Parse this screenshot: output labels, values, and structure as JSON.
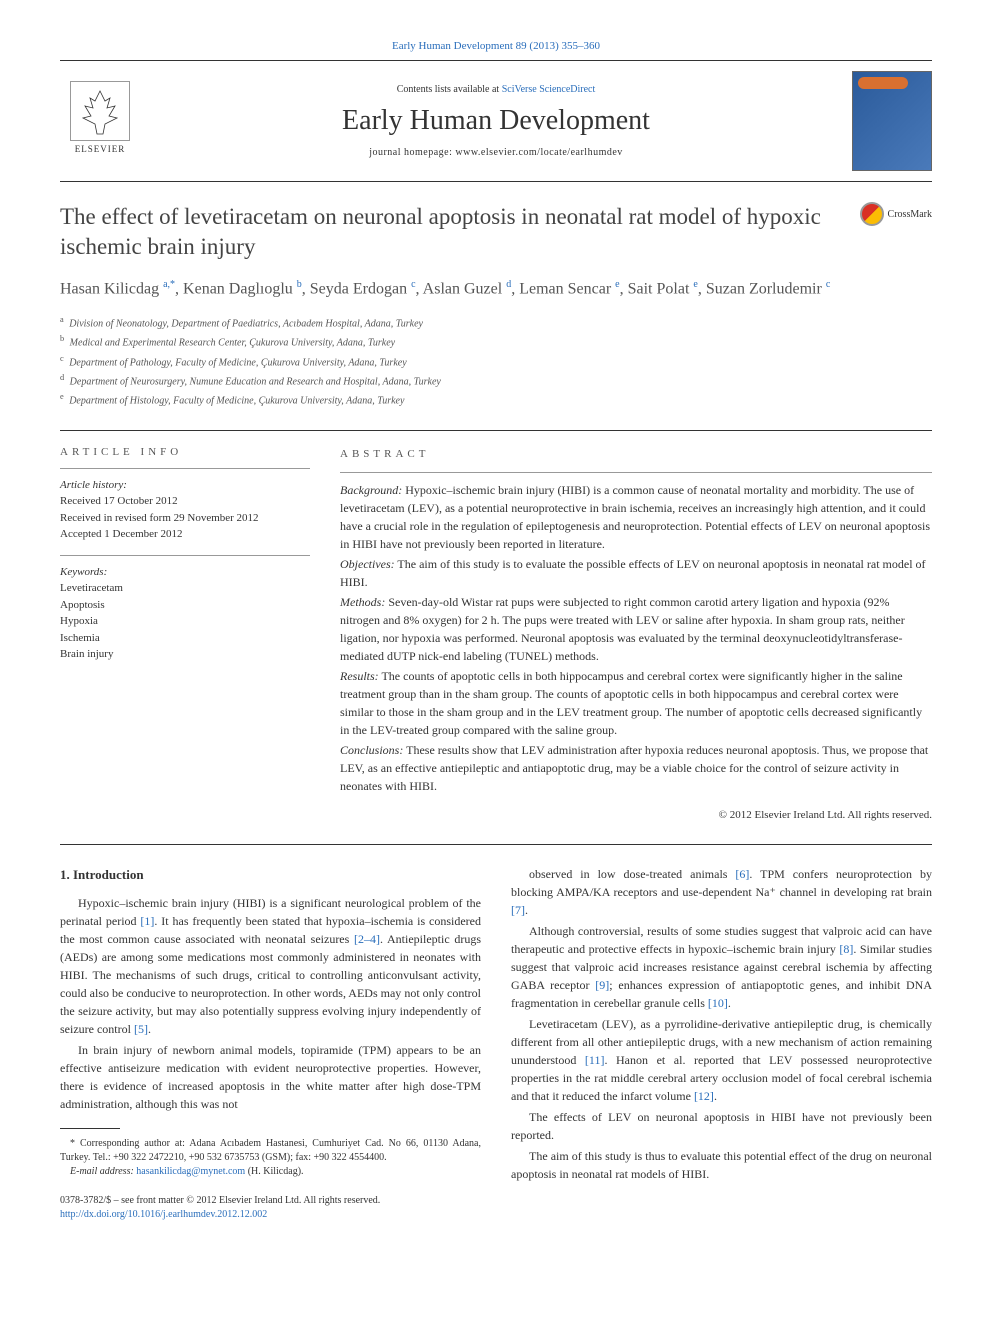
{
  "journal_ref": "Early Human Development 89 (2013) 355–360",
  "header": {
    "contents_prefix": "Contents lists available at ",
    "contents_link": "SciVerse ScienceDirect",
    "journal_name": "Early Human Development",
    "homepage": "journal homepage: www.elsevier.com/locate/earlhumdev",
    "publisher": "ELSEVIER"
  },
  "crossmark_label": "CrossMark",
  "title": "The effect of levetiracetam on neuronal apoptosis in neonatal rat model of hypoxic ischemic brain injury",
  "authors_html": "Hasan Kilicdag <sup>a,*</sup>, Kenan Daglıoglu <sup>b</sup>, Seyda Erdogan <sup>c</sup>, Aslan Guzel <sup>d</sup>, Leman Sencar <sup>e</sup>, Sait Polat <sup>e</sup>, Suzan Zorludemir <sup>c</sup>",
  "affiliations": [
    {
      "sup": "a",
      "text": "Division of Neonatology, Department of Paediatrics, Acıbadem Hospital, Adana, Turkey"
    },
    {
      "sup": "b",
      "text": "Medical and Experimental Research Center, Çukurova University, Adana, Turkey"
    },
    {
      "sup": "c",
      "text": "Department of Pathology, Faculty of Medicine, Çukurova University, Adana, Turkey"
    },
    {
      "sup": "d",
      "text": "Department of Neurosurgery, Numune Education and Research and Hospital, Adana, Turkey"
    },
    {
      "sup": "e",
      "text": "Department of Histology, Faculty of Medicine, Çukurova University, Adana, Turkey"
    }
  ],
  "article_info": {
    "header": "ARTICLE INFO",
    "history_label": "Article history:",
    "history": [
      "Received 17 October 2012",
      "Received in revised form 29 November 2012",
      "Accepted 1 December 2012"
    ],
    "keywords_label": "Keywords:",
    "keywords": [
      "Levetiracetam",
      "Apoptosis",
      "Hypoxia",
      "Ischemia",
      "Brain injury"
    ]
  },
  "abstract": {
    "header": "ABSTRACT",
    "sections": [
      {
        "label": "Background:",
        "text": "Hypoxic–ischemic brain injury (HIBI) is a common cause of neonatal mortality and morbidity. The use of levetiracetam (LEV), as a potential neuroprotective in brain ischemia, receives an increasingly high attention, and it could have a crucial role in the regulation of epileptogenesis and neuroprotection. Potential effects of LEV on neuronal apoptosis in HIBI have not previously been reported in literature."
      },
      {
        "label": "Objectives:",
        "text": "The aim of this study is to evaluate the possible effects of LEV on neuronal apoptosis in neonatal rat model of HIBI."
      },
      {
        "label": "Methods:",
        "text": "Seven-day-old Wistar rat pups were subjected to right common carotid artery ligation and hypoxia (92% nitrogen and 8% oxygen) for 2 h. The pups were treated with LEV or saline after hypoxia. In sham group rats, neither ligation, nor hypoxia was performed. Neuronal apoptosis was evaluated by the terminal deoxynucleotidyltransferase- mediated dUTP nick-end labeling (TUNEL) methods."
      },
      {
        "label": "Results:",
        "text": "The counts of apoptotic cells in both hippocampus and cerebral cortex were significantly higher in the saline treatment group than in the sham group. The counts of apoptotic cells in both hippocampus and cerebral cortex were similar to those in the sham group and in the LEV treatment group. The number of apoptotic cells decreased significantly in the LEV-treated group compared with the saline group."
      },
      {
        "label": "Conclusions:",
        "text": "These results show that LEV administration after hypoxia reduces neuronal apoptosis. Thus, we propose that LEV, as an effective antiepileptic and antiapoptotic drug, may be a viable choice for the control of seizure activity in neonates with HIBI."
      }
    ],
    "copyright": "© 2012 Elsevier Ireland Ltd. All rights reserved."
  },
  "body": {
    "heading": "1. Introduction",
    "col1": [
      "Hypoxic–ischemic brain injury (HIBI) is a significant neurological problem of the perinatal period [1]. It has frequently been stated that hypoxia–ischemia is considered the most common cause associated with neonatal seizures [2–4]. Antiepileptic drugs (AEDs) are among some medications most commonly administered in neonates with HIBI. The mechanisms of such drugs, critical to controlling anticonvulsant activity, could also be conducive to neuroprotection. In other words, AEDs may not only control the seizure activity, but may also potentially suppress evolving injury independently of seizure control [5].",
      "In brain injury of newborn animal models, topiramide (TPM) appears to be an effective antiseizure medication with evident neuroprotective properties. However, there is evidence of increased apoptosis in the white matter after high dose-TPM administration, although this was not"
    ],
    "col2": [
      "observed in low dose-treated animals [6]. TPM confers neuroprotection by blocking AMPA/KA receptors and use-dependent Na⁺ channel in developing rat brain [7].",
      "Although controversial, results of some studies suggest that valproic acid can have therapeutic and protective effects in hypoxic–ischemic brain injury [8]. Similar studies suggest that valproic acid increases resistance against cerebral ischemia by affecting GABA receptor [9]; enhances expression of antiapoptotic genes, and inhibit DNA fragmentation in cerebellar granule cells [10].",
      "Levetiracetam (LEV), as a pyrrolidine-derivative antiepileptic drug, is chemically different from all other antiepileptic drugs, with a new mechanism of action remaining ununderstood [11]. Hanon et al. reported that LEV possessed neuroprotective properties in the rat middle cerebral artery occlusion model of focal cerebral ischemia and that it reduced the infarct volume [12].",
      "The effects of LEV on neuronal apoptosis in HIBI have not previously been reported.",
      "The aim of this study is thus to evaluate this potential effect of the drug on neuronal apoptosis in neonatal rat models of HIBI."
    ]
  },
  "footnote": {
    "corresponding": "* Corresponding author at: Adana Acıbadem Hastanesi, Cumhuriyet Cad. No 66, 01130 Adana, Turkey. Tel.: +90 322 2472210, +90 532 6735753 (GSM); fax: +90 322 4554400.",
    "email_label": "E-mail address:",
    "email": "hasankilicdag@mynet.com",
    "email_name": "(H. Kilicdag)."
  },
  "bottom": {
    "issn": "0378-3782/$ – see front matter © 2012 Elsevier Ireland Ltd. All rights reserved.",
    "doi": "http://dx.doi.org/10.1016/j.earlhumdev.2012.12.002"
  },
  "colors": {
    "link": "#2a6ebb",
    "text": "#333333",
    "cover_bg1": "#2a5a9a",
    "cover_bg2": "#4a7aba"
  }
}
